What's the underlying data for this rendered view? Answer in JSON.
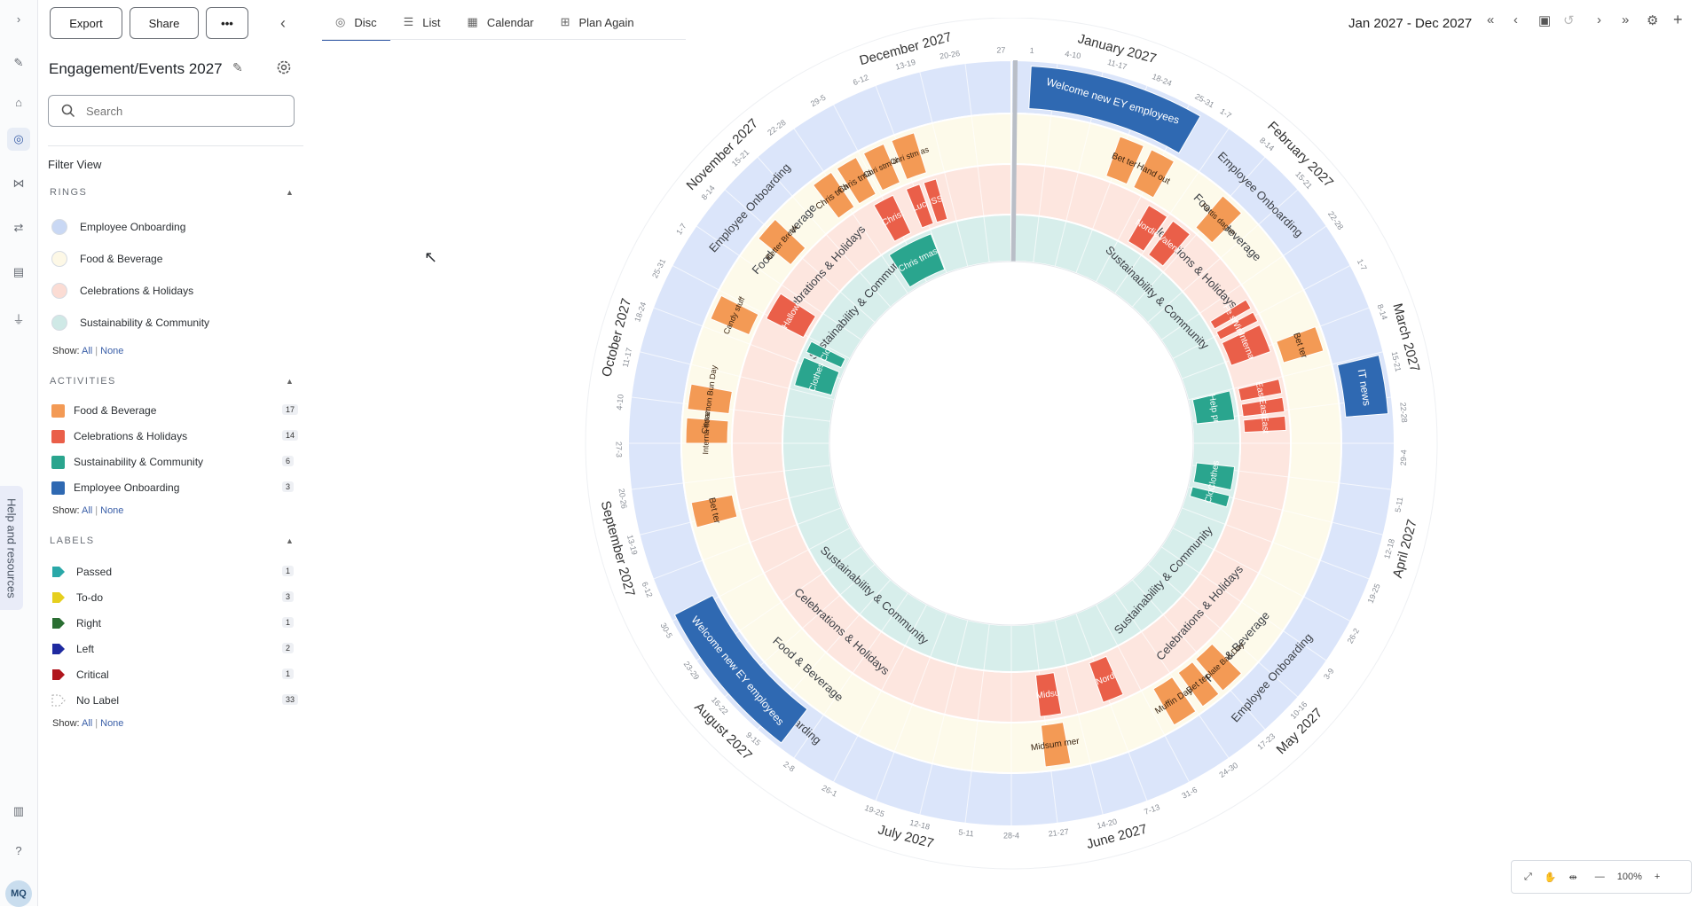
{
  "sidebar_buttons": {
    "export": "Export",
    "share": "Share",
    "more": "•••"
  },
  "plan_title": "Engagement/Events 2027",
  "search": {
    "placeholder": "Search"
  },
  "filter_view_label": "Filter View",
  "rings_section": {
    "heading": "RINGS",
    "items": [
      {
        "label": "Employee Onboarding",
        "color": "#c9d8f4"
      },
      {
        "label": "Food & Beverage",
        "color": "#fdf8e6"
      },
      {
        "label": "Celebrations & Holidays",
        "color": "#fbdcd4"
      },
      {
        "label": "Sustainability & Community",
        "color": "#cfe9e6"
      }
    ],
    "show_label": "Show:",
    "all": "All",
    "none": "None"
  },
  "activities_section": {
    "heading": "ACTIVITIES",
    "items": [
      {
        "label": "Food & Beverage",
        "count": "17",
        "color": "#f39a55"
      },
      {
        "label": "Celebrations & Holidays",
        "count": "14",
        "color": "#ea5f49"
      },
      {
        "label": "Sustainability & Community",
        "count": "6",
        "color": "#2aa58e"
      },
      {
        "label": "Employee Onboarding",
        "count": "3",
        "color": "#2f69b2"
      }
    ],
    "show_label": "Show:",
    "all": "All",
    "none": "None"
  },
  "labels_section": {
    "heading": "LABELS",
    "items": [
      {
        "label": "Passed",
        "count": "1",
        "color": "#2aa8a8"
      },
      {
        "label": "To-do",
        "count": "3",
        "color": "#e6cf1e"
      },
      {
        "label": "Right",
        "count": "1",
        "color": "#2b6e33"
      },
      {
        "label": "Left",
        "count": "2",
        "color": "#1f2aa0"
      },
      {
        "label": "Critical",
        "count": "1",
        "color": "#b0161d"
      },
      {
        "label": "No Label",
        "count": "33",
        "color": "none"
      }
    ],
    "show_label": "Show:",
    "all": "All",
    "none": "None"
  },
  "help_tab": "Help and resources",
  "avatar_initials": "MQ",
  "view_tabs": [
    {
      "label": "Disc",
      "icon": "disc-icon"
    },
    {
      "label": "List",
      "icon": "list-icon"
    },
    {
      "label": "Calendar",
      "icon": "calendar-icon"
    },
    {
      "label": "Plan Again",
      "icon": "plan-again-icon"
    }
  ],
  "date_range": "Jan 2027 - Dec 2027",
  "zoom_level": "100%",
  "disc": {
    "months": [
      "January 2027",
      "February 2027",
      "March 2027",
      "April 2027",
      "May 2027",
      "June 2027",
      "July 2027",
      "August 2027",
      "September 2027",
      "October 2027",
      "November 2027",
      "December 2027"
    ],
    "week_labels": [
      {
        "label": "1",
        "m": 0
      },
      {
        "label": "4-10",
        "m": 0.2
      },
      {
        "label": "11-17",
        "m": 0.42
      },
      {
        "label": "18-24",
        "m": 0.65
      },
      {
        "label": "25-31",
        "m": 0.88
      },
      {
        "label": "1-7",
        "m": 1.0
      },
      {
        "label": "8-14",
        "m": 1.25
      },
      {
        "label": "15-21",
        "m": 1.5
      },
      {
        "label": "22-28",
        "m": 1.75
      },
      {
        "label": "1-7",
        "m": 2.0
      },
      {
        "label": "8-14",
        "m": 2.25
      },
      {
        "label": "15-21",
        "m": 2.5
      },
      {
        "label": "22-28",
        "m": 2.75
      },
      {
        "label": "29-4",
        "m": 2.97
      },
      {
        "label": "5-11",
        "m": 3.2
      },
      {
        "label": "12-18",
        "m": 3.42
      },
      {
        "label": "19-25",
        "m": 3.65
      },
      {
        "label": "26-2",
        "m": 3.88
      },
      {
        "label": "3-9",
        "m": 4.1
      },
      {
        "label": "10-16",
        "m": 4.33
      },
      {
        "label": "17-23",
        "m": 4.55
      },
      {
        "label": "24-30",
        "m": 4.78
      },
      {
        "label": "31-6",
        "m": 5.0
      },
      {
        "label": "7-13",
        "m": 5.2
      },
      {
        "label": "14-20",
        "m": 5.43
      },
      {
        "label": "21-27",
        "m": 5.67
      },
      {
        "label": "28-4",
        "m": 5.9
      },
      {
        "label": "5-11",
        "m": 6.12
      },
      {
        "label": "12-18",
        "m": 6.35
      },
      {
        "label": "19-25",
        "m": 6.58
      },
      {
        "label": "26-1",
        "m": 6.82
      },
      {
        "label": "2-8",
        "m": 7.05
      },
      {
        "label": "9-15",
        "m": 7.27
      },
      {
        "label": "16-22",
        "m": 7.5
      },
      {
        "label": "23-29",
        "m": 7.72
      },
      {
        "label": "30-5",
        "m": 7.95
      },
      {
        "label": "6-12",
        "m": 8.17
      },
      {
        "label": "13-19",
        "m": 8.4
      },
      {
        "label": "20-26",
        "m": 8.63
      },
      {
        "label": "27-3",
        "m": 8.87
      },
      {
        "label": "4-10",
        "m": 9.1
      },
      {
        "label": "11-17",
        "m": 9.32
      },
      {
        "label": "18-24",
        "m": 9.55
      },
      {
        "label": "25-31",
        "m": 9.78
      },
      {
        "label": "1-7",
        "m": 10.0
      },
      {
        "label": "8-14",
        "m": 10.22
      },
      {
        "label": "15-21",
        "m": 10.45
      },
      {
        "label": "22-28",
        "m": 10.68
      },
      {
        "label": "29-5",
        "m": 10.92
      },
      {
        "label": "6-12",
        "m": 11.15
      },
      {
        "label": "13-19",
        "m": 11.38
      },
      {
        "label": "20-26",
        "m": 11.6
      },
      {
        "label": "27",
        "m": 11.85
      }
    ],
    "ring_labels": [
      {
        "label": "Employee Onboarding",
        "ring": 0,
        "m": 1.5
      },
      {
        "label": "Employee Onboarding",
        "ring": 0,
        "m": 4.4
      },
      {
        "label": "Employee Onboarding",
        "ring": 0,
        "m": 7.4
      },
      {
        "label": "Employee Onboarding",
        "ring": 0,
        "m": 10.4
      },
      {
        "label": "Food & Beverage",
        "ring": 1,
        "m": 1.5
      },
      {
        "label": "Food & Beverage",
        "ring": 1,
        "m": 4.4
      },
      {
        "label": "Food & Beverage",
        "ring": 1,
        "m": 7.4
      },
      {
        "label": "Food & Beverage",
        "ring": 1,
        "m": 10.4
      },
      {
        "label": "Celebrations & Holidays",
        "ring": 2,
        "m": 1.5
      },
      {
        "label": "Celebrations & Holidays",
        "ring": 2,
        "m": 4.4
      },
      {
        "label": "Celebrations & Holidays",
        "ring": 2,
        "m": 7.4
      },
      {
        "label": "Celebrations & Holidays",
        "ring": 2,
        "m": 10.4
      },
      {
        "label": "Sustainability & Community",
        "ring": 3,
        "m": 1.5
      },
      {
        "label": "Sustainability & Community",
        "ring": 3,
        "m": 4.4
      },
      {
        "label": "Sustainability & Community",
        "ring": 3,
        "m": 7.4
      },
      {
        "label": "Sustainability & Community",
        "ring": 3,
        "m": 10.4
      }
    ],
    "activities": [
      {
        "label": "Welcome new EY employees",
        "ring": 0,
        "start": 0.1,
        "end": 1.0,
        "type": "onboarding"
      },
      {
        "label": "IT news",
        "ring": 0,
        "start": 2.55,
        "end": 2.85,
        "type": "onboarding"
      },
      {
        "label": "Welcome new EY employees",
        "ring": 0,
        "start": 7.25,
        "end": 8.1,
        "type": "onboarding"
      },
      {
        "label": "Bet ter",
        "ring": 1,
        "start": 0.65,
        "end": 0.8,
        "type": "food"
      },
      {
        "label": "Hand out",
        "ring": 1,
        "start": 0.85,
        "end": 1.0,
        "type": "food"
      },
      {
        "label": "Fettis dagen",
        "ring": 1,
        "start": 1.35,
        "end": 1.5,
        "type": "food"
      },
      {
        "label": "Bet ter",
        "ring": 1,
        "start": 2.3,
        "end": 2.45,
        "type": "food"
      },
      {
        "label": "Chocolate Ball Day",
        "ring": 1,
        "start": 4.5,
        "end": 4.65,
        "type": "food"
      },
      {
        "label": "Bet ter",
        "ring": 1,
        "start": 4.68,
        "end": 4.8,
        "type": "food"
      },
      {
        "label": "Muffin Day",
        "ring": 1,
        "start": 4.85,
        "end": 5.0,
        "type": "food"
      },
      {
        "label": "Midsum mer",
        "ring": 1,
        "start": 5.65,
        "end": 5.8,
        "type": "food"
      },
      {
        "label": "Bet ter",
        "ring": 1,
        "start": 8.5,
        "end": 8.65,
        "type": "food"
      },
      {
        "label": "Interna tional",
        "ring": 1,
        "start": 9.0,
        "end": 9.15,
        "type": "food"
      },
      {
        "label": "Cinnamon Bun Day",
        "ring": 1,
        "start": 9.2,
        "end": 9.35,
        "type": "food"
      },
      {
        "label": "Candy stuff",
        "ring": 1,
        "start": 9.75,
        "end": 9.9,
        "type": "food"
      },
      {
        "label": "Better Break",
        "ring": 1,
        "start": 10.3,
        "end": 10.45,
        "type": "food"
      },
      {
        "label": "Chris tmas",
        "ring": 1,
        "start": 10.75,
        "end": 10.88,
        "type": "food"
      },
      {
        "label": "Chris tmas",
        "ring": 1,
        "start": 10.92,
        "end": 11.05,
        "type": "food"
      },
      {
        "label": "Chri stm as",
        "ring": 1,
        "start": 11.1,
        "end": 11.23,
        "type": "food"
      },
      {
        "label": "Chri stm as",
        "ring": 1,
        "start": 11.28,
        "end": 11.42,
        "type": "food"
      },
      {
        "label": "Nordic",
        "ring": 2,
        "start": 1.0,
        "end": 1.15,
        "type": "celebration"
      },
      {
        "label": "Valent",
        "ring": 2,
        "start": 1.2,
        "end": 1.35,
        "type": "celebration"
      },
      {
        "label": "Fe ss",
        "ring": 2,
        "start": 1.95,
        "end": 2.02,
        "type": "celebration"
      },
      {
        "label": "Win",
        "ring": 2,
        "start": 2.05,
        "end": 2.12,
        "type": "celebration"
      },
      {
        "label": "Interna",
        "ring": 2,
        "start": 2.15,
        "end": 2.35,
        "type": "celebration"
      },
      {
        "label": "East",
        "ring": 2,
        "start": 2.55,
        "end": 2.65,
        "type": "celebration"
      },
      {
        "label": "East",
        "ring": 2,
        "start": 2.68,
        "end": 2.78,
        "type": "celebration"
      },
      {
        "label": "East",
        "ring": 2,
        "start": 2.81,
        "end": 2.91,
        "type": "celebration"
      },
      {
        "label": "Nord",
        "ring": 2,
        "start": 5.2,
        "end": 5.35,
        "type": "celebration"
      },
      {
        "label": "Midsu",
        "ring": 2,
        "start": 5.65,
        "end": 5.8,
        "type": "celebration"
      },
      {
        "label": "Hallow",
        "ring": 2,
        "start": 9.9,
        "end": 10.1,
        "type": "celebration"
      },
      {
        "label": "Christ",
        "ring": 2,
        "start": 11.0,
        "end": 11.15,
        "type": "celebration"
      },
      {
        "label": "Luci",
        "ring": 2,
        "start": 11.25,
        "end": 11.35,
        "type": "celebration"
      },
      {
        "label": "ISS",
        "ring": 2,
        "start": 11.38,
        "end": 11.47,
        "type": "celebration"
      },
      {
        "label": "Help pr",
        "ring": 3,
        "start": 2.55,
        "end": 2.8,
        "type": "sustain"
      },
      {
        "label": "Clothes",
        "ring": 3,
        "start": 3.2,
        "end": 3.4,
        "type": "sustain"
      },
      {
        "label": "Clo",
        "ring": 3,
        "start": 3.45,
        "end": 3.55,
        "type": "sustain"
      },
      {
        "label": "Clo",
        "ring": 3,
        "start": 9.8,
        "end": 9.9,
        "type": "sustain"
      },
      {
        "label": "Clothes",
        "ring": 3,
        "start": 9.5,
        "end": 9.75,
        "type": "sustain"
      },
      {
        "label": "Chris tmas",
        "ring": 3,
        "start": 10.9,
        "end": 11.3,
        "type": "sustain"
      }
    ]
  },
  "colors": {
    "onboarding": "#2f69b2",
    "food": "#f39a55",
    "celebration": "#ea5f49",
    "sustain": "#2aa58e",
    "ring_onboarding": "#dbe5fa",
    "ring_food": "#fdfaea",
    "ring_celebration": "#fde6df",
    "ring_sustain": "#d7eeeb",
    "accent": "#3a5fa8"
  }
}
